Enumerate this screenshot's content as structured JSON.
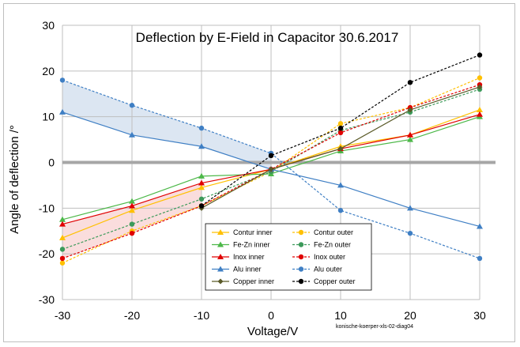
{
  "chart_data": {
    "type": "line",
    "title": "Deflection by E-Field in Capacitor 30.6.2017",
    "xlabel": "Voltage/V",
    "ylabel": "Angle of deflection /°",
    "xlim": [
      -30,
      30
    ],
    "ylim": [
      -30,
      30
    ],
    "xticks": [
      -30,
      -20,
      -10,
      0,
      10,
      20,
      30
    ],
    "yticks": [
      30,
      20,
      10,
      0,
      -10,
      -20,
      -30
    ],
    "tick_labels_x": [
      "-30",
      "-20",
      "-10",
      "0",
      "10",
      "20",
      "30"
    ],
    "tick_labels_y": [
      "30",
      "20",
      "10",
      "0",
      "-10",
      "-20",
      "-30"
    ],
    "grid": true,
    "footnote": "konische-koerper-xls-02-diag04",
    "shaded_regions": [
      {
        "name": "Alu band",
        "color": "#dce6f2",
        "upper_series": "Alu outer",
        "lower_series": "Alu inner",
        "x_range": [
          -30,
          0
        ]
      },
      {
        "name": "Inox band",
        "color": "#fadddd",
        "upper_series": "Inox inner",
        "lower_series": "Inox outer",
        "x_range": [
          -30,
          -10
        ]
      }
    ],
    "series": [
      {
        "name": "Contur inner",
        "color": "#ffc000",
        "dashed": false,
        "marker": "triangle",
        "x": [
          -30,
          -20,
          -10,
          0,
          10,
          20,
          30
        ],
        "values": [
          -16.5,
          -10.5,
          -5.5,
          -1.5,
          3.5,
          6.0,
          11.5
        ]
      },
      {
        "name": "Contur outer",
        "color": "#ffc000",
        "dashed": true,
        "marker": "circle",
        "x": [
          -30,
          -20,
          -10,
          0,
          10,
          20,
          30
        ],
        "values": [
          -22.0,
          -15.0,
          -9.5,
          -2.0,
          8.5,
          12.0,
          18.5
        ]
      },
      {
        "name": "Fe-Zn inner",
        "color": "#4cb848",
        "dashed": false,
        "marker": "triangle",
        "x": [
          -30,
          -20,
          -10,
          0,
          10,
          20,
          30
        ],
        "values": [
          -12.5,
          -8.5,
          -3.0,
          -2.5,
          2.5,
          5.0,
          10.0
        ]
      },
      {
        "name": "Fe-Zn outer",
        "color": "#3c9a5a",
        "dashed": true,
        "marker": "circle",
        "x": [
          -30,
          -20,
          -10,
          0,
          10,
          20,
          30
        ],
        "values": [
          -19.0,
          -13.5,
          -8.0,
          -2.0,
          7.0,
          11.0,
          16.0
        ]
      },
      {
        "name": "Inox inner",
        "color": "#e00000",
        "dashed": false,
        "marker": "triangle",
        "x": [
          -30,
          -20,
          -10,
          0,
          10,
          20,
          30
        ],
        "values": [
          -13.5,
          -9.5,
          -4.5,
          -1.5,
          3.0,
          6.0,
          10.5
        ]
      },
      {
        "name": "Inox outer",
        "color": "#e00000",
        "dashed": true,
        "marker": "circle",
        "x": [
          -30,
          -20,
          -10,
          0,
          10,
          20,
          30
        ],
        "values": [
          -21.0,
          -15.5,
          -9.5,
          -1.5,
          6.5,
          12.0,
          17.0
        ]
      },
      {
        "name": "Alu inner",
        "color": "#3f7fc4",
        "dashed": false,
        "marker": "triangle",
        "x": [
          -30,
          -20,
          -10,
          0,
          10,
          20,
          30
        ],
        "values": [
          11.0,
          6.0,
          3.5,
          -1.5,
          -5.0,
          -10.0,
          -14.0
        ]
      },
      {
        "name": "Alu outer",
        "color": "#3f7fc4",
        "dashed": true,
        "marker": "circle",
        "x": [
          -30,
          -20,
          -10,
          0,
          10,
          20,
          30
        ],
        "values": [
          18.0,
          12.5,
          7.5,
          2.0,
          -10.5,
          -15.5,
          -21.0
        ]
      },
      {
        "name": "Copper inner",
        "color": "#5a5a28",
        "dashed": false,
        "marker": "diamond",
        "x": [
          -10,
          0,
          10,
          20,
          30
        ],
        "values": [
          -10.0,
          -1.5,
          3.0,
          11.5,
          16.5
        ]
      },
      {
        "name": "Copper outer",
        "color": "#000000",
        "dashed": true,
        "marker": "circle",
        "x": [
          -10,
          0,
          10,
          20,
          30
        ],
        "values": [
          -9.5,
          1.5,
          7.5,
          17.5,
          23.5
        ]
      }
    ]
  }
}
